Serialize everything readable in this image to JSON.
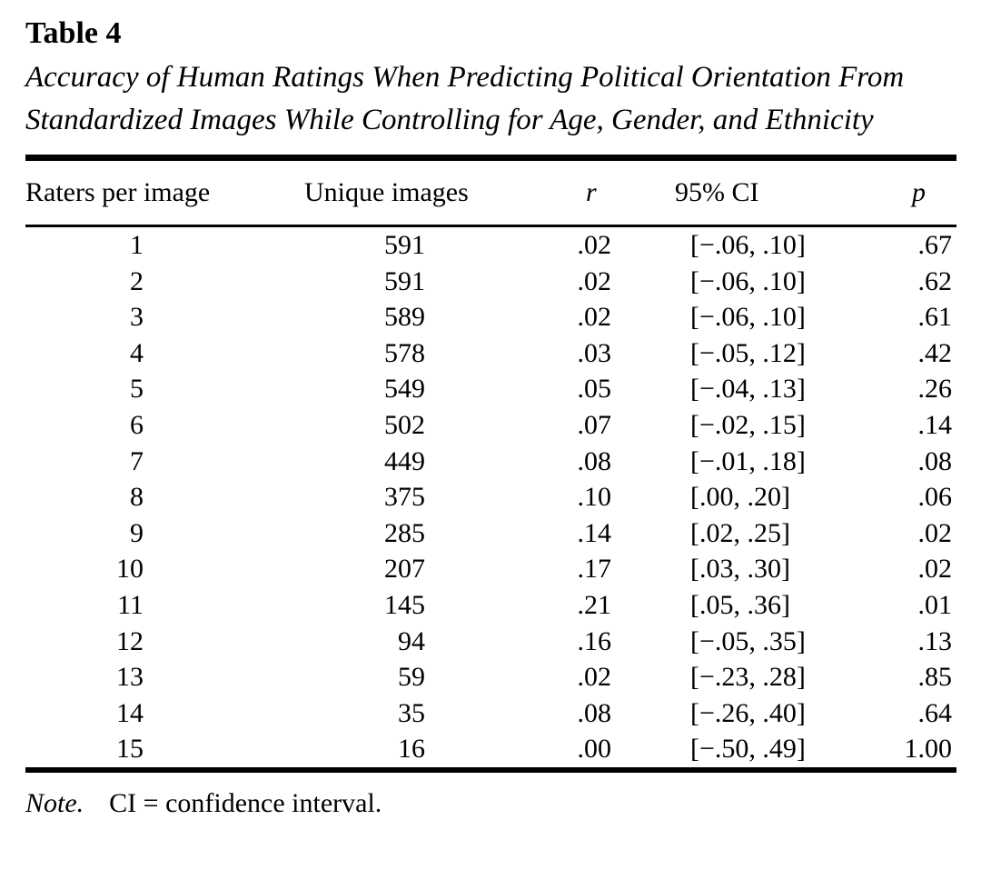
{
  "page": {
    "background_color": "#ffffff",
    "text_color": "#000000",
    "rule_color": "#000000"
  },
  "table_label": "Table 4",
  "caption": "Accuracy of Human Ratings When Predicting Political Orientation From Standardized Images While Controlling for Age, Gender, and Ethnicity",
  "columns": [
    "Raters per image",
    "Unique images",
    "r",
    "95% CI",
    "p"
  ],
  "rows": [
    [
      "1",
      "591",
      ".02",
      "[−.06, .10]",
      ".67"
    ],
    [
      "2",
      "591",
      ".02",
      "[−.06, .10]",
      ".62"
    ],
    [
      "3",
      "589",
      ".02",
      "[−.06, .10]",
      ".61"
    ],
    [
      "4",
      "578",
      ".03",
      "[−.05, .12]",
      ".42"
    ],
    [
      "5",
      "549",
      ".05",
      "[−.04, .13]",
      ".26"
    ],
    [
      "6",
      "502",
      ".07",
      "[−.02, .15]",
      ".14"
    ],
    [
      "7",
      "449",
      ".08",
      "[−.01, .18]",
      ".08"
    ],
    [
      "8",
      "375",
      ".10",
      "[.00, .20]",
      ".06"
    ],
    [
      "9",
      "285",
      ".14",
      "[.02, .25]",
      ".02"
    ],
    [
      "10",
      "207",
      ".17",
      "[.03, .30]",
      ".02"
    ],
    [
      "11",
      "145",
      ".21",
      "[.05, .36]",
      ".01"
    ],
    [
      "12",
      "94",
      ".16",
      "[−.05, .35]",
      ".13"
    ],
    [
      "13",
      "59",
      ".02",
      "[−.23, .28]",
      ".85"
    ],
    [
      "14",
      "35",
      ".08",
      "[−.26, .40]",
      ".64"
    ],
    [
      "15",
      "16",
      ".00",
      "[−.50, .49]",
      "1.00"
    ]
  ],
  "note": {
    "label": "Note.",
    "text": "CI = confidence interval."
  },
  "chart_data": {
    "type": "table",
    "title": "Table 4. Accuracy of Human Ratings When Predicting Political Orientation From Standardized Images While Controlling for Age, Gender, and Ethnicity",
    "columns": [
      "Raters per image",
      "Unique images",
      "r",
      "95% CI",
      "p"
    ],
    "raters_per_image": [
      1,
      2,
      3,
      4,
      5,
      6,
      7,
      8,
      9,
      10,
      11,
      12,
      13,
      14,
      15
    ],
    "unique_images": [
      591,
      591,
      589,
      578,
      549,
      502,
      449,
      375,
      285,
      207,
      145,
      94,
      59,
      35,
      16
    ],
    "r": [
      0.02,
      0.02,
      0.02,
      0.03,
      0.05,
      0.07,
      0.08,
      0.1,
      0.14,
      0.17,
      0.21,
      0.16,
      0.02,
      0.08,
      0.0
    ],
    "ci_low": [
      -0.06,
      -0.06,
      -0.06,
      -0.05,
      -0.04,
      -0.02,
      -0.01,
      0.0,
      0.02,
      0.03,
      0.05,
      -0.05,
      -0.23,
      -0.26,
      -0.5
    ],
    "ci_high": [
      0.1,
      0.1,
      0.1,
      0.12,
      0.13,
      0.15,
      0.18,
      0.2,
      0.25,
      0.3,
      0.36,
      0.35,
      0.28,
      0.4,
      0.49
    ],
    "p": [
      0.67,
      0.62,
      0.61,
      0.42,
      0.26,
      0.14,
      0.08,
      0.06,
      0.02,
      0.02,
      0.01,
      0.13,
      0.85,
      0.64,
      1.0
    ],
    "note": "CI = confidence interval."
  }
}
